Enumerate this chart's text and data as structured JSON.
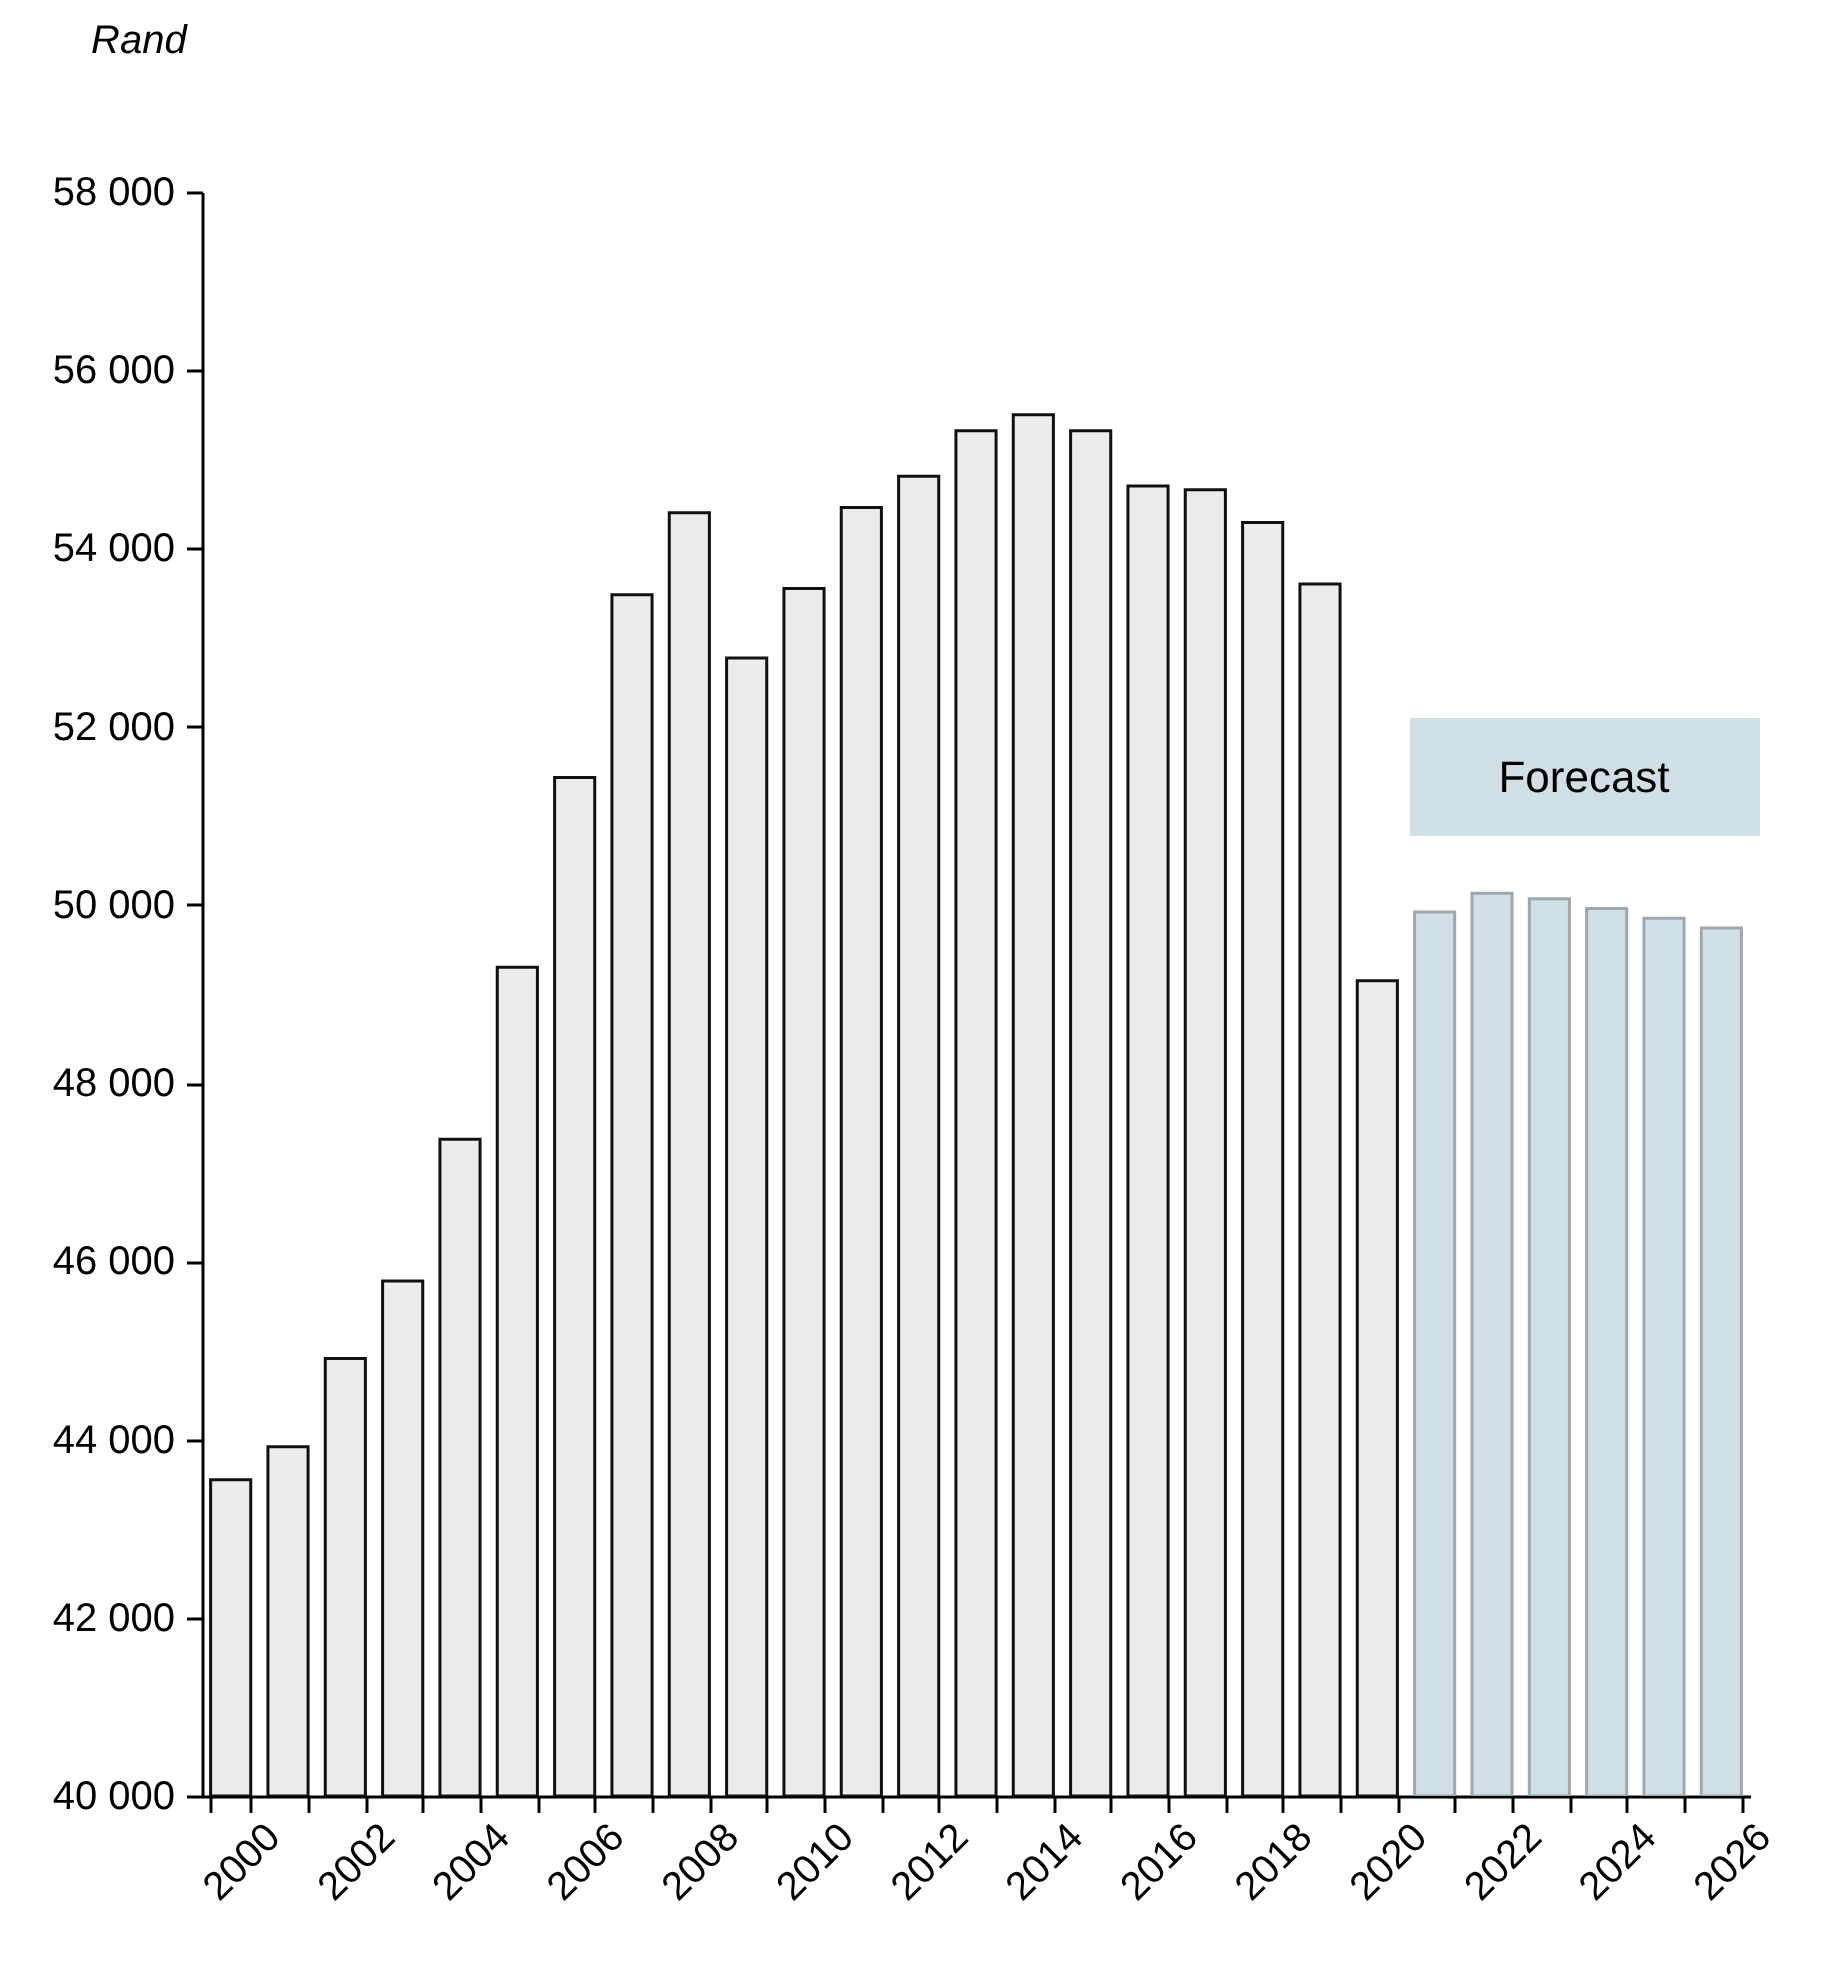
{
  "chart_data": {
    "type": "bar",
    "ylabel": "Rand",
    "categories": [
      "2000",
      null,
      "2002",
      null,
      "2004",
      null,
      "2006",
      null,
      "2008",
      null,
      "2010",
      null,
      "2012",
      null,
      "2014",
      null,
      "2016",
      null,
      "2018",
      null,
      "2020",
      null,
      "2022",
      null,
      "2024",
      null,
      "2026"
    ],
    "series": [
      {
        "color": "#ebecee",
        "values": [
          43550,
          43920,
          44910,
          45780,
          47370,
          49300,
          51430,
          53480,
          54400,
          52770,
          53550,
          54460,
          54810,
          55320,
          55500,
          55320,
          54700,
          54660,
          54290,
          53600,
          49150,
          null,
          null,
          null,
          null,
          null,
          null
        ]
      },
      {
        "color": "#d0e0e6",
        "values": [
          null,
          null,
          null,
          null,
          null,
          null,
          null,
          null,
          null,
          null,
          null,
          null,
          null,
          null,
          null,
          null,
          null,
          null,
          null,
          null,
          null,
          49920,
          50130,
          50070,
          49960,
          49850,
          49740
        ]
      }
    ],
    "ylim": [
      40000,
      58000
    ],
    "yticks": [
      {
        "value": 40000,
        "label": "40 000"
      },
      {
        "value": 42000,
        "label": "42 000"
      },
      {
        "value": 44000,
        "label": "44 000"
      },
      {
        "value": 46000,
        "label": "46 000"
      },
      {
        "value": 48000,
        "label": "48 000"
      },
      {
        "value": 50000,
        "label": "50 000"
      },
      {
        "value": 52000,
        "label": "52 000"
      },
      {
        "value": 54000,
        "label": "54 000"
      },
      {
        "value": 56000,
        "label": "56 000"
      },
      {
        "value": 58000,
        "label": "58 000"
      }
    ],
    "grid": false,
    "annotations": [
      "Forecast"
    ]
  }
}
